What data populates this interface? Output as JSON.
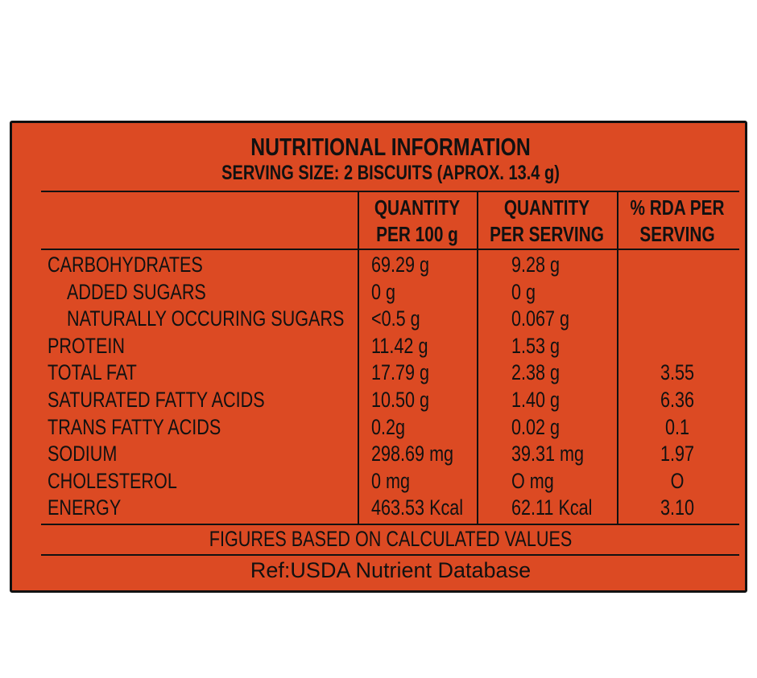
{
  "header": {
    "title": "NUTRITIONAL INFORMATION",
    "subtitle": "SERVING SIZE: 2 BISCUITS (APROX. 13.4 g)"
  },
  "table": {
    "columns": [
      [
        "QUANTITY",
        "PER 100 g"
      ],
      [
        "QUANTITY",
        "PER SERVING"
      ],
      [
        "% RDA PER",
        "SERVING"
      ]
    ],
    "rows": [
      {
        "name": "CARBOHYDRATES",
        "per_100g": "69.29 g",
        "per_serving": "9.28 g"
      },
      {
        "name": "ADDED SUGARS",
        "per_100g": "0 g",
        "per_serving": "0 g"
      },
      {
        "name": "NATURALLY OCCURING SUGARS",
        "per_100g": "<0.5 g",
        "per_serving": "0.067 g"
      },
      {
        "name": "PROTEIN",
        "per_100g": "11.42 g",
        "per_serving": "1.53 g"
      },
      {
        "name": "TOTAL FAT",
        "per_100g": "17.79 g",
        "per_serving": "2.38 g",
        "rda": "3.55"
      },
      {
        "name": "SATURATED FATTY ACIDS",
        "per_100g": "10.50 g",
        "per_serving": "1.40 g",
        "rda": "6.36"
      },
      {
        "name": "TRANS FATTY ACIDS",
        "per_100g": "0.2g",
        "per_serving": "0.02 g",
        "rda": "0.1"
      },
      {
        "name": "SODIUM",
        "per_100g": "298.69 mg",
        "per_serving": "39.31 mg",
        "rda": "1.97"
      },
      {
        "name": "CHOLESTEROL",
        "per_100g": "0 mg",
        "per_serving": "O mg",
        "rda": "O"
      },
      {
        "name": "ENERGY",
        "per_100g": "463.53 Kcal",
        "per_serving": "62.11 Kcal",
        "rda": "3.10"
      }
    ]
  },
  "footer": {
    "note": "FIGURES BASED ON CALCULATED VALUES",
    "reference": "Ref:USDA Nutrient Database"
  }
}
